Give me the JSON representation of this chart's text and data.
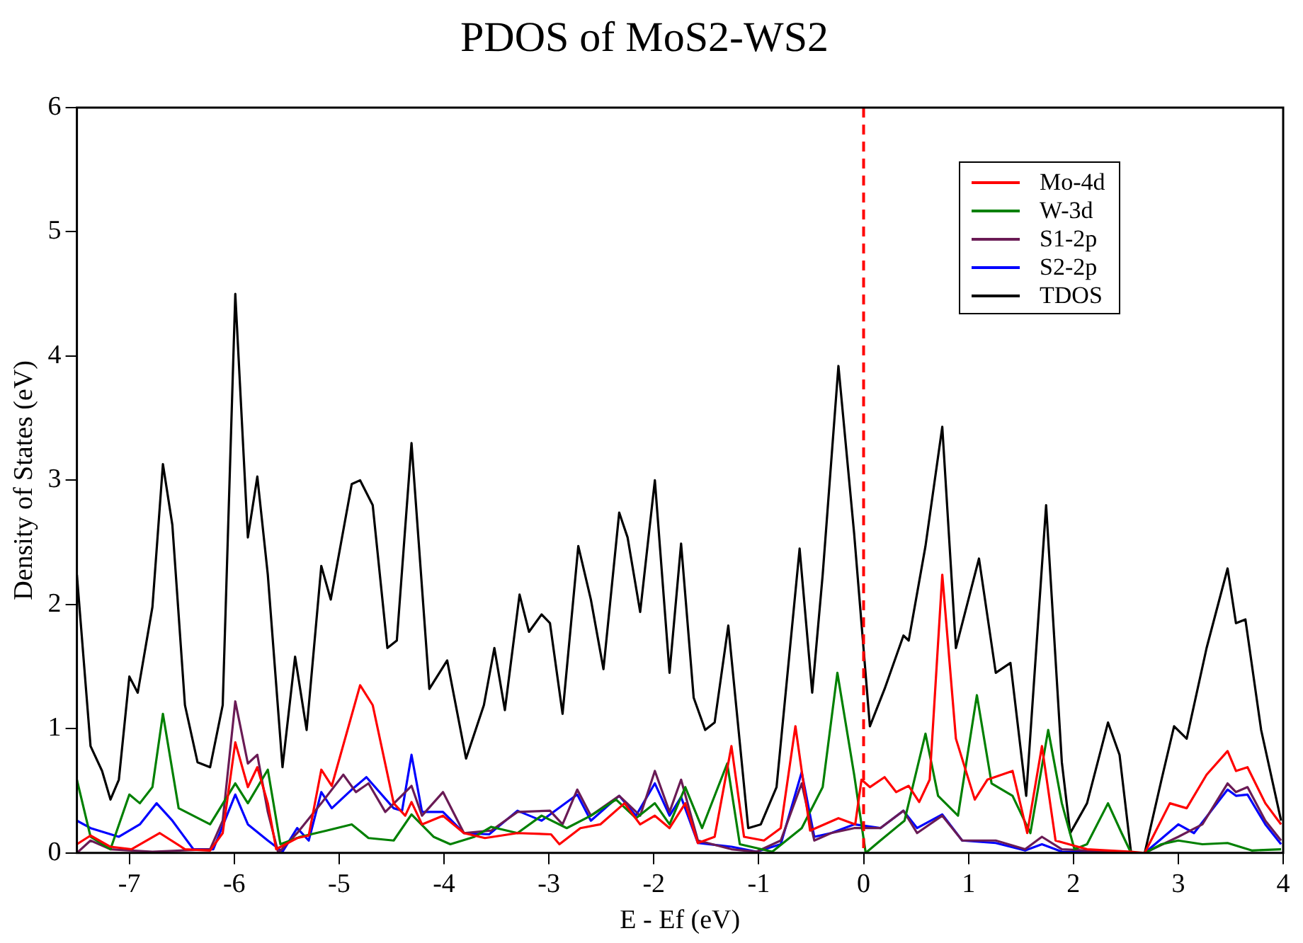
{
  "chart_data": {
    "type": "line",
    "title": "PDOS of MoS2-WS2",
    "xlabel": "E - Ef (eV)",
    "ylabel": "Density of States (eV)",
    "xlim": [
      -7.5,
      4
    ],
    "xticks": [
      -7,
      -6,
      -5,
      -4,
      -3,
      -2,
      -1,
      0,
      1,
      2,
      3,
      4
    ],
    "ylim": [
      0,
      6
    ],
    "yticks": [
      0,
      1,
      2,
      3,
      4,
      5,
      6
    ],
    "grid": false,
    "legend": "top right",
    "marker": "none",
    "line_style": "solid",
    "ref_lines": [
      {
        "axis": "x",
        "value": 0,
        "color": "#ff0000",
        "line_style": "dashed"
      }
    ],
    "series": [
      {
        "name": "Mo-4d",
        "color": "#ff0000",
        "x": [
          -7.5,
          -7.37,
          -7.18,
          -6.98,
          -6.71,
          -6.47,
          -6.23,
          -6.11,
          -5.99,
          -5.87,
          -5.78,
          -5.68,
          -5.6,
          -5.4,
          -5.29,
          -5.17,
          -5.07,
          -4.8,
          -4.68,
          -4.48,
          -4.37,
          -4.31,
          -4.21,
          -4.01,
          -3.81,
          -3.61,
          -3.3,
          -2.98,
          -2.9,
          -2.7,
          -2.51,
          -2.28,
          -2.13,
          -1.99,
          -1.85,
          -1.7,
          -1.58,
          -1.42,
          -1.26,
          -1.14,
          -0.95,
          -0.79,
          -0.65,
          -0.51,
          -0.24,
          -0.08,
          -0.02,
          0.06,
          0.2,
          0.31,
          0.43,
          0.53,
          0.63,
          0.75,
          0.88,
          1.06,
          1.18,
          1.42,
          1.56,
          1.7,
          1.83,
          2.13,
          2.55,
          2.68,
          2.92,
          3.08,
          3.27,
          3.47,
          3.55,
          3.66,
          3.83,
          3.98
        ],
        "values": [
          0.07,
          0.14,
          0.05,
          0.03,
          0.16,
          0.03,
          0.02,
          0.16,
          0.89,
          0.53,
          0.69,
          0.4,
          0.03,
          0.12,
          0.14,
          0.67,
          0.54,
          1.35,
          1.19,
          0.4,
          0.3,
          0.41,
          0.23,
          0.3,
          0.16,
          0.12,
          0.16,
          0.15,
          0.07,
          0.2,
          0.23,
          0.4,
          0.23,
          0.3,
          0.2,
          0.4,
          0.08,
          0.13,
          0.86,
          0.13,
          0.1,
          0.2,
          1.02,
          0.18,
          0.28,
          0.23,
          0.59,
          0.53,
          0.61,
          0.49,
          0.54,
          0.41,
          0.59,
          2.24,
          0.92,
          0.43,
          0.59,
          0.66,
          0.16,
          0.86,
          0.1,
          0.03,
          0.01,
          0,
          0.4,
          0.36,
          0.63,
          0.82,
          0.66,
          0.69,
          0.4,
          0.23
        ]
      },
      {
        "name": "W-3d",
        "color": "#008000",
        "x": [
          -7.5,
          -7.37,
          -7.18,
          -7.0,
          -6.9,
          -6.78,
          -6.68,
          -6.53,
          -6.23,
          -5.99,
          -5.87,
          -5.68,
          -5.56,
          -5.37,
          -5.12,
          -4.88,
          -4.72,
          -4.48,
          -4.31,
          -4.1,
          -3.94,
          -3.71,
          -3.55,
          -3.3,
          -3.07,
          -2.83,
          -2.6,
          -2.36,
          -2.17,
          -1.99,
          -1.85,
          -1.7,
          -1.54,
          -1.3,
          -1.18,
          -0.87,
          -0.59,
          -0.39,
          -0.25,
          -0.09,
          0.02,
          0.16,
          0.39,
          0.59,
          0.71,
          0.9,
          1.08,
          1.22,
          1.42,
          1.59,
          1.76,
          1.89,
          2.01,
          2.13,
          2.33,
          2.46,
          2.55,
          2.68,
          2.84,
          3.0,
          3.23,
          3.47,
          3.7,
          3.98
        ],
        "values": [
          0.59,
          0.13,
          0.03,
          0.47,
          0.4,
          0.53,
          1.12,
          0.36,
          0.23,
          0.56,
          0.4,
          0.67,
          0.07,
          0.13,
          0.18,
          0.23,
          0.12,
          0.1,
          0.31,
          0.13,
          0.07,
          0.13,
          0.21,
          0.16,
          0.3,
          0.2,
          0.3,
          0.43,
          0.28,
          0.4,
          0.23,
          0.53,
          0.2,
          0.72,
          0.07,
          0.01,
          0.2,
          0.53,
          1.45,
          0.63,
          0,
          0.1,
          0.26,
          0.96,
          0.46,
          0.3,
          1.27,
          0.56,
          0.46,
          0.16,
          0.99,
          0.4,
          0.03,
          0.07,
          0.4,
          0.16,
          0,
          0,
          0.07,
          0.1,
          0.07,
          0.08,
          0.02,
          0.03
        ]
      },
      {
        "name": "S1-2p",
        "color": "#6a1b55",
        "x": [
          -7.5,
          -7.37,
          -7.18,
          -6.78,
          -6.23,
          -6.11,
          -5.99,
          -5.87,
          -5.78,
          -5.68,
          -5.58,
          -5.4,
          -5.17,
          -4.96,
          -4.84,
          -4.72,
          -4.56,
          -4.31,
          -4.21,
          -4.01,
          -3.81,
          -3.55,
          -3.3,
          -2.99,
          -2.87,
          -2.73,
          -2.6,
          -2.33,
          -2.13,
          -1.99,
          -1.85,
          -1.74,
          -1.58,
          -1.26,
          -1.02,
          -0.79,
          -0.59,
          -0.47,
          -0.31,
          -0.09,
          0.16,
          0.38,
          0.51,
          0.75,
          0.94,
          1.26,
          1.54,
          1.7,
          1.89,
          2.55,
          2.68,
          3.0,
          3.23,
          3.47,
          3.55,
          3.66,
          3.83,
          3.98
        ],
        "values": [
          0,
          0.1,
          0.03,
          0.01,
          0.03,
          0.26,
          1.22,
          0.72,
          0.79,
          0.33,
          0,
          0.16,
          0.4,
          0.63,
          0.49,
          0.56,
          0.33,
          0.54,
          0.3,
          0.49,
          0.16,
          0.18,
          0.33,
          0.34,
          0.23,
          0.51,
          0.3,
          0.46,
          0.3,
          0.66,
          0.33,
          0.59,
          0.1,
          0.03,
          0.01,
          0.1,
          0.56,
          0.1,
          0.16,
          0.2,
          0.2,
          0.34,
          0.16,
          0.3,
          0.1,
          0.1,
          0.03,
          0.13,
          0.03,
          0,
          0,
          0.13,
          0.23,
          0.56,
          0.49,
          0.53,
          0.26,
          0.1
        ]
      },
      {
        "name": "S2-2p",
        "color": "#0000ff",
        "x": [
          -7.5,
          -7.37,
          -7.1,
          -6.9,
          -6.74,
          -6.59,
          -6.39,
          -6.2,
          -5.99,
          -5.87,
          -5.68,
          -5.54,
          -5.4,
          -5.29,
          -5.17,
          -5.07,
          -4.88,
          -4.74,
          -4.48,
          -4.4,
          -4.31,
          -4.21,
          -4.01,
          -3.81,
          -3.57,
          -3.3,
          -3.07,
          -2.73,
          -2.6,
          -2.33,
          -2.17,
          -1.99,
          -1.85,
          -1.74,
          -1.58,
          -1.26,
          -1.02,
          -0.79,
          -0.59,
          -0.47,
          -0.31,
          -0.09,
          0.16,
          0.38,
          0.51,
          0.75,
          0.94,
          1.26,
          1.54,
          1.7,
          1.89,
          2.55,
          2.68,
          3.0,
          3.15,
          3.47,
          3.55,
          3.66,
          3.83,
          3.98
        ],
        "values": [
          0.26,
          0.2,
          0.13,
          0.23,
          0.4,
          0.26,
          0.03,
          0.03,
          0.47,
          0.23,
          0.1,
          0.01,
          0.2,
          0.1,
          0.49,
          0.36,
          0.51,
          0.61,
          0.36,
          0.34,
          0.79,
          0.33,
          0.33,
          0.16,
          0.15,
          0.34,
          0.26,
          0.47,
          0.26,
          0.46,
          0.3,
          0.56,
          0.3,
          0.45,
          0.08,
          0.05,
          0.01,
          0.07,
          0.65,
          0.13,
          0.16,
          0.23,
          0.2,
          0.34,
          0.2,
          0.31,
          0.1,
          0.08,
          0.02,
          0.07,
          0.01,
          0,
          0,
          0.23,
          0.16,
          0.51,
          0.46,
          0.47,
          0.23,
          0.07
        ]
      },
      {
        "name": "TDOS",
        "color": "#000000",
        "x": [
          -7.5,
          -7.37,
          -7.26,
          -7.18,
          -7.1,
          -7.0,
          -6.92,
          -6.78,
          -6.68,
          -6.59,
          -6.47,
          -6.35,
          -6.23,
          -6.11,
          -5.99,
          -5.87,
          -5.78,
          -5.68,
          -5.54,
          -5.42,
          -5.31,
          -5.17,
          -5.08,
          -4.88,
          -4.8,
          -4.68,
          -4.54,
          -4.45,
          -4.31,
          -4.14,
          -3.97,
          -3.79,
          -3.62,
          -3.52,
          -3.42,
          -3.28,
          -3.19,
          -3.07,
          -2.99,
          -2.87,
          -2.72,
          -2.6,
          -2.48,
          -2.33,
          -2.25,
          -2.13,
          -1.99,
          -1.85,
          -1.74,
          -1.62,
          -1.51,
          -1.42,
          -1.29,
          -1.1,
          -0.98,
          -0.83,
          -0.61,
          -0.49,
          -0.39,
          -0.24,
          -0.09,
          0.06,
          0.2,
          0.38,
          0.43,
          0.59,
          0.75,
          0.88,
          1.1,
          1.26,
          1.4,
          1.55,
          1.74,
          1.89,
          1.97,
          2.13,
          2.33,
          2.44,
          2.55,
          2.68,
          2.84,
          2.96,
          3.08,
          3.27,
          3.47,
          3.55,
          3.64,
          3.79,
          3.98
        ],
        "values": [
          2.24,
          0.86,
          0.66,
          0.43,
          0.59,
          1.42,
          1.29,
          1.98,
          3.13,
          2.64,
          1.19,
          0.73,
          0.69,
          1.19,
          4.5,
          2.54,
          3.03,
          2.24,
          0.69,
          1.58,
          0.99,
          2.31,
          2.04,
          2.97,
          3.0,
          2.8,
          1.65,
          1.71,
          3.3,
          1.32,
          1.55,
          0.76,
          1.19,
          1.65,
          1.15,
          2.08,
          1.78,
          1.92,
          1.85,
          1.12,
          2.47,
          2.04,
          1.48,
          2.74,
          2.54,
          1.94,
          3.0,
          1.45,
          2.49,
          1.25,
          0.99,
          1.05,
          1.83,
          0.2,
          0.23,
          0.53,
          2.45,
          1.29,
          2.24,
          3.92,
          2.57,
          1.02,
          1.32,
          1.75,
          1.71,
          2.47,
          3.43,
          1.65,
          2.37,
          1.45,
          1.53,
          0.46,
          2.8,
          0.73,
          0.16,
          0.4,
          1.05,
          0.79,
          0,
          0,
          0.59,
          1.02,
          0.92,
          1.65,
          2.29,
          1.85,
          1.88,
          0.99,
          0.26
        ]
      }
    ]
  }
}
